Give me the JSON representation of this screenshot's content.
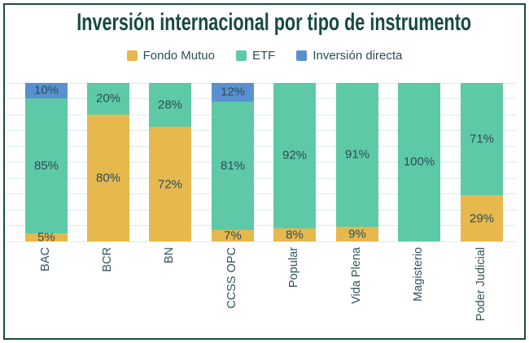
{
  "frame": {
    "border_color": "#1B4A42"
  },
  "title": {
    "text": "Inversión internacional por tipo de instrumento",
    "color": "#174A41"
  },
  "legend": {
    "items": [
      {
        "label": "Fondo Mutuo",
        "color": "#E6B84D"
      },
      {
        "label": "ETF",
        "color": "#5EC9A7"
      },
      {
        "label": "Inversión directa",
        "color": "#5B90D0"
      }
    ]
  },
  "chart_data": {
    "type": "bar",
    "stacked": true,
    "title": "Inversión internacional por tipo de instrumento",
    "categories": [
      "BAC",
      "BCR",
      "BN",
      "CCSS OPC",
      "Popular",
      "Vida Plena",
      "Magisterio",
      "Poder Judicial"
    ],
    "series": [
      {
        "name": "Fondo Mutuo",
        "color": "#E6B84D",
        "values": [
          5,
          80,
          72,
          7,
          8,
          9,
          0,
          29
        ]
      },
      {
        "name": "ETF",
        "color": "#5EC9A7",
        "values": [
          85,
          20,
          28,
          81,
          92,
          91,
          100,
          71
        ]
      },
      {
        "name": "Inversión directa",
        "color": "#5B90D0",
        "values": [
          10,
          0,
          0,
          12,
          0,
          0,
          0,
          0
        ]
      }
    ],
    "value_suffix": "%",
    "data_labels": true,
    "label_color": "#2B4D55",
    "ylim": [
      0,
      100
    ],
    "grid": true,
    "grid_interval": 10,
    "grid_color": "#D8EEEB",
    "legend_position": "top-center",
    "tick_label_rotation": -90,
    "xlabel": "",
    "ylabel": ""
  }
}
